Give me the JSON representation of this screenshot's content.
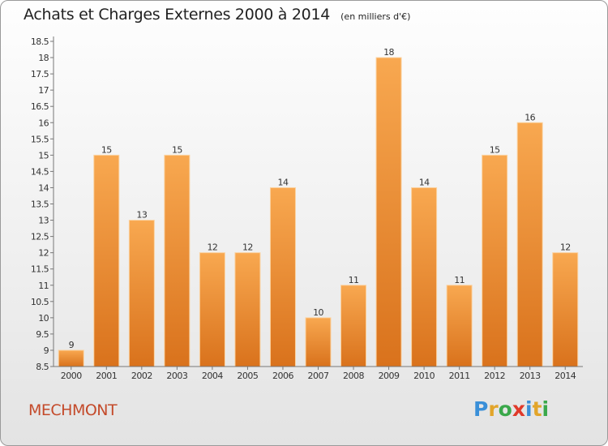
{
  "title": "Achats et Charges Externes 2000 à 2014",
  "unit": "(en milliers d'€)",
  "commune": "MECHMONT",
  "logo": {
    "text": "Proxiti",
    "letters": [
      {
        "char": "P",
        "color": "#3a8fd8"
      },
      {
        "char": "r",
        "color": "#e2a52a"
      },
      {
        "char": "o",
        "color": "#3aa84a"
      },
      {
        "char": "x",
        "color": "#e03a2a"
      },
      {
        "char": "i",
        "color": "#3a8fd8"
      },
      {
        "char": "t",
        "color": "#e2a52a"
      },
      {
        "char": "i",
        "color": "#3aa84a"
      }
    ]
  },
  "chart_data": {
    "type": "bar",
    "categories": [
      "2000",
      "2001",
      "2002",
      "2003",
      "2004",
      "2005",
      "2006",
      "2007",
      "2008",
      "2009",
      "2010",
      "2011",
      "2012",
      "2013",
      "2014"
    ],
    "values": [
      9,
      15,
      13,
      15,
      12,
      12,
      14,
      10,
      11,
      18,
      14,
      11,
      15,
      16,
      12
    ],
    "value_labels": [
      "9",
      "15",
      "13",
      "15",
      "12",
      "12",
      "14",
      "10",
      "11",
      "18",
      "14",
      "11",
      "15",
      "16",
      "12"
    ],
    "ylim": [
      8.5,
      18.5
    ],
    "y_ticks": [
      "8.5",
      "9",
      "9.5",
      "10",
      "10.5",
      "11",
      "11.5",
      "12",
      "12.5",
      "13",
      "13.5",
      "14",
      "14.5",
      "15",
      "15.5",
      "16",
      "16.5",
      "17",
      "17.5",
      "18",
      "18.5"
    ],
    "xlabel": "",
    "ylabel": "",
    "grid": false,
    "bar_color_top": "#f8a850",
    "bar_color_bottom": "#d9721c"
  }
}
